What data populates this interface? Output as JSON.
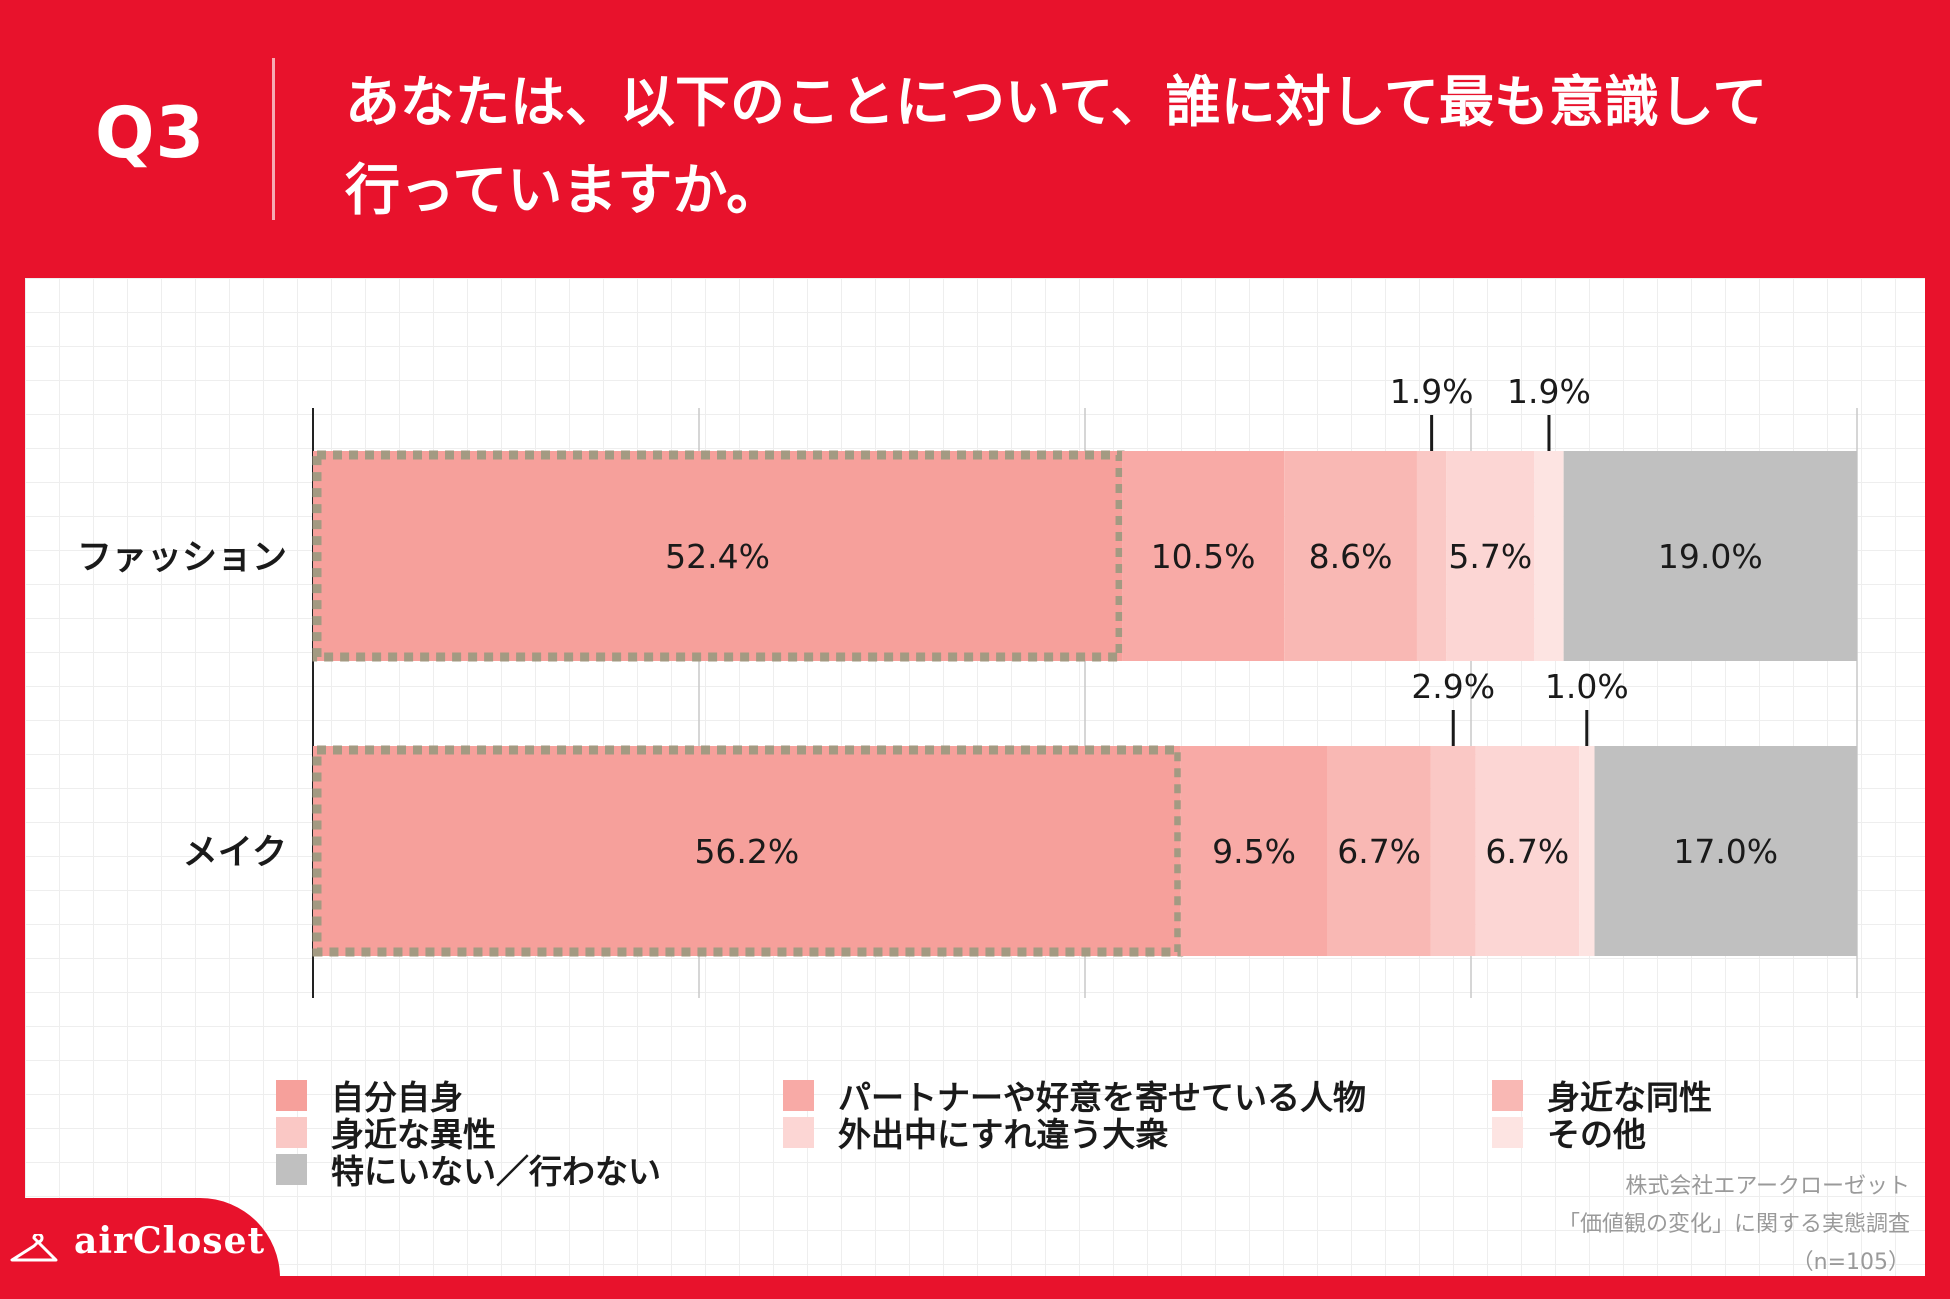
{
  "header": {
    "question_label": "Q3",
    "title_line1": "あなたは、以下のことについて、誰に対して最も意識して",
    "title_line2": "行っていますか。"
  },
  "colors": {
    "brand_red": "#e8122c",
    "self": "#f6a09b",
    "partner": "#f8aaa6",
    "same_sex": "#f9b8b4",
    "opposite_sex": "#fac8c5",
    "strangers": "#fcd6d4",
    "other": "#fde4e2",
    "nobody": "#c0c0c0",
    "highlight_border": "#a39a82"
  },
  "chart_data": {
    "type": "bar",
    "orientation": "horizontal",
    "stacked": true,
    "xlim": [
      0,
      100
    ],
    "grid": true,
    "categories": [
      "ファッション",
      "メイク"
    ],
    "highlighted_series": "自分自身",
    "series": [
      {
        "name": "自分自身",
        "color_key": "self",
        "values": [
          52.4,
          56.2
        ],
        "labels": [
          "52.4%",
          "56.2%"
        ]
      },
      {
        "name": "パートナーや好意を寄せている人物",
        "color_key": "partner",
        "values": [
          10.5,
          9.5
        ],
        "labels": [
          "10.5%",
          "9.5%"
        ]
      },
      {
        "name": "身近な同性",
        "color_key": "same_sex",
        "values": [
          8.6,
          6.7
        ],
        "labels": [
          "8.6%",
          "6.7%"
        ]
      },
      {
        "name": "身近な異性",
        "color_key": "opposite_sex",
        "values": [
          1.9,
          2.9
        ],
        "labels": [
          "1.9%",
          "2.9%"
        ]
      },
      {
        "name": "外出中にすれ違う大衆",
        "color_key": "strangers",
        "values": [
          5.7,
          6.7
        ],
        "labels": [
          "5.7%",
          "6.7%"
        ]
      },
      {
        "name": "その他",
        "color_key": "other",
        "values": [
          1.9,
          1.0
        ],
        "labels": [
          "1.9%",
          "1.0%"
        ]
      },
      {
        "name": "特にいない／行わない",
        "color_key": "nobody",
        "values": [
          19.0,
          17.0
        ],
        "labels": [
          "19.0%",
          "17.0%"
        ]
      }
    ]
  },
  "source": {
    "line1": "株式会社エアークローゼット",
    "line2": "「価値観の変化」に関する実態調査",
    "line3": "（n=105）"
  },
  "brand": {
    "name": "airCloset"
  }
}
